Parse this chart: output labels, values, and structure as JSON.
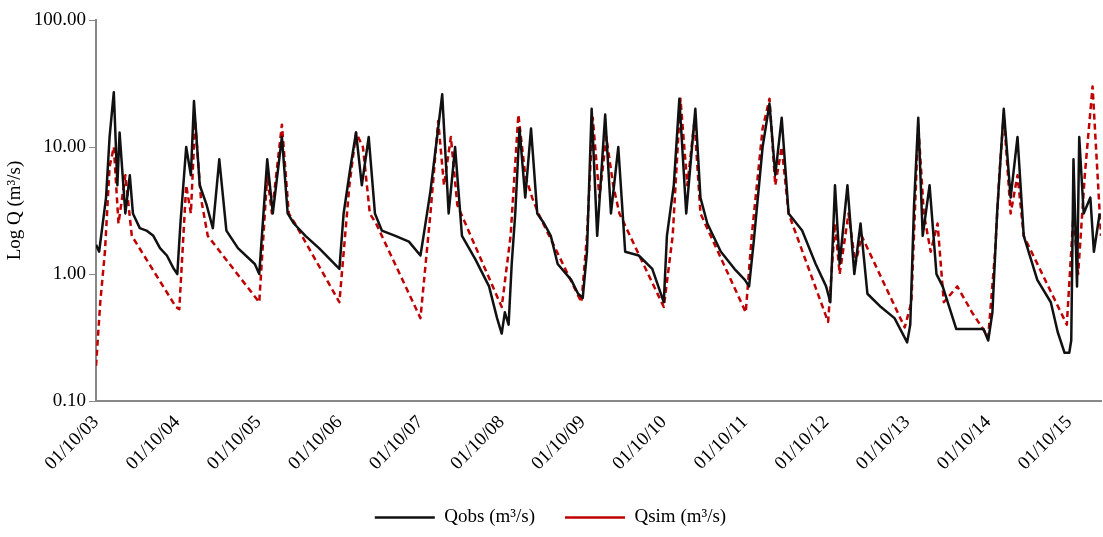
{
  "chart_data": {
    "type": "line",
    "ylabel": "Log Q (m³/s)",
    "log": "y",
    "grid": false,
    "legend": "bottom",
    "marker": "none",
    "xlim": [
      "2003-10-01",
      "2016-02-21"
    ],
    "xticks": [
      {
        "value": "2003-10-01",
        "label": "01/10/03"
      },
      {
        "value": "2004-10-01",
        "label": "01/10/04"
      },
      {
        "value": "2005-10-01",
        "label": "01/10/05"
      },
      {
        "value": "2006-10-01",
        "label": "01/10/06"
      },
      {
        "value": "2007-10-01",
        "label": "01/10/07"
      },
      {
        "value": "2008-10-01",
        "label": "01/10/08"
      },
      {
        "value": "2009-10-01",
        "label": "01/10/09"
      },
      {
        "value": "2010-10-01",
        "label": "01/10/10"
      },
      {
        "value": "2011-10-01",
        "label": "01/10/11"
      },
      {
        "value": "2012-10-01",
        "label": "01/10/12"
      },
      {
        "value": "2013-10-01",
        "label": "01/10/13"
      },
      {
        "value": "2014-10-01",
        "label": "01/10/14"
      },
      {
        "value": "2015-10-01",
        "label": "01/10/15"
      }
    ],
    "ylim": [
      0.1,
      100
    ],
    "yticks": [
      {
        "value": 0.1,
        "label": "0.10"
      },
      {
        "value": 1,
        "label": "1.00"
      },
      {
        "value": 10,
        "label": "10.00"
      },
      {
        "value": 100,
        "label": "100.00"
      }
    ],
    "series": [
      {
        "name": "Qobs (m³/s)",
        "color": "#111111",
        "line_style": "solid",
        "x": [
          "2003-10-01",
          "2003-10-15",
          "2003-11-15",
          "2003-12-01",
          "2003-12-20",
          "2004-01-05",
          "2004-01-15",
          "2004-02-10",
          "2004-03-01",
          "2004-03-15",
          "2004-04-15",
          "2004-05-15",
          "2004-06-15",
          "2004-07-15",
          "2004-08-15",
          "2004-09-15",
          "2004-10-01",
          "2004-10-15",
          "2004-11-10",
          "2004-12-01",
          "2004-12-15",
          "2005-01-10",
          "2005-02-10",
          "2005-03-10",
          "2005-04-08",
          "2005-05-10",
          "2005-07-01",
          "2005-09-15",
          "2005-10-05",
          "2005-11-10",
          "2005-12-05",
          "2006-01-15",
          "2006-02-10",
          "2006-03-10",
          "2006-05-01",
          "2006-07-01",
          "2006-09-10",
          "2006-10-01",
          "2006-10-20",
          "2006-11-20",
          "2006-12-15",
          "2007-01-10",
          "2007-02-10",
          "2007-03-10",
          "2007-04-10",
          "2007-06-10",
          "2007-08-10",
          "2007-10-01",
          "2007-10-15",
          "2007-11-15",
          "2007-12-15",
          "2008-01-07",
          "2008-02-05",
          "2008-03-05",
          "2008-04-05",
          "2008-06-05",
          "2008-08-05",
          "2008-09-10",
          "2008-10-01",
          "2008-10-15",
          "2008-11-01",
          "2008-11-15",
          "2008-12-01",
          "2008-12-20",
          "2009-01-15",
          "2009-02-10",
          "2009-03-10",
          "2009-04-10",
          "2009-05-10",
          "2009-06-10",
          "2009-08-10",
          "2009-09-10",
          "2009-10-01",
          "2009-10-20",
          "2009-11-10",
          "2009-12-05",
          "2010-01-10",
          "2010-02-05",
          "2010-03-10",
          "2010-04-10",
          "2010-06-10",
          "2010-08-10",
          "2010-10-01",
          "2010-10-15",
          "2010-11-15",
          "2010-12-10",
          "2011-01-10",
          "2011-02-20",
          "2011-03-15",
          "2011-04-15",
          "2011-06-15",
          "2011-08-15",
          "2011-10-01",
          "2011-10-20",
          "2011-11-10",
          "2011-12-20",
          "2012-01-20",
          "2012-02-15",
          "2012-03-15",
          "2012-04-15",
          "2012-06-15",
          "2012-08-15",
          "2012-10-01",
          "2012-10-20",
          "2012-11-10",
          "2012-12-01",
          "2013-01-05",
          "2013-02-05",
          "2013-03-05",
          "2013-04-05",
          "2013-06-05",
          "2013-08-05",
          "2013-10-01",
          "2013-10-15",
          "2013-11-01",
          "2013-11-20",
          "2013-12-10",
          "2014-01-10",
          "2014-02-10",
          "2014-03-10",
          "2014-05-10",
          "2014-07-10",
          "2014-09-10",
          "2014-10-01",
          "2014-10-20",
          "2014-11-10",
          "2014-12-10",
          "2015-01-10",
          "2015-02-10",
          "2015-03-10",
          "2015-05-10",
          "2015-07-10",
          "2015-08-10",
          "2015-09-10",
          "2015-10-01",
          "2015-10-10",
          "2015-10-20",
          "2015-11-05",
          "2015-11-15",
          "2015-12-05",
          "2016-01-04",
          "2016-01-20",
          "2016-02-15"
        ],
        "values": [
          1.7,
          1.5,
          4,
          12,
          27,
          5,
          13,
          3,
          6,
          3,
          2.3,
          2.2,
          2,
          1.6,
          1.4,
          1.1,
          1.0,
          2.5,
          10,
          6,
          23,
          5,
          3.5,
          2.3,
          8,
          2.2,
          1.6,
          1.2,
          1.0,
          8,
          3,
          12,
          3,
          2.5,
          2,
          1.6,
          1.2,
          1.1,
          3,
          7,
          13,
          5,
          12,
          3,
          2.2,
          2,
          1.8,
          1.4,
          2,
          4.5,
          12,
          26,
          3,
          10,
          2,
          1.3,
          0.8,
          0.45,
          0.34,
          0.5,
          0.4,
          1.2,
          3,
          14,
          4,
          14,
          3,
          2.5,
          2,
          1.2,
          0.9,
          0.7,
          0.65,
          1.5,
          20,
          2,
          18,
          3,
          10,
          1.5,
          1.4,
          1.1,
          0.6,
          2,
          5,
          24,
          3,
          20,
          4,
          2.5,
          1.5,
          1.1,
          0.9,
          0.8,
          1.8,
          10,
          22,
          6,
          17,
          3,
          2.2,
          1.2,
          0.8,
          0.6,
          5,
          1.2,
          5,
          1,
          2.5,
          0.7,
          0.55,
          0.45,
          0.29,
          0.4,
          3.5,
          17,
          2,
          5,
          1,
          0.8,
          0.37,
          0.37,
          0.37,
          0.3,
          0.5,
          3,
          20,
          4,
          12,
          2,
          0.9,
          0.6,
          0.35,
          0.24,
          0.24,
          0.3,
          8,
          0.8,
          12,
          3,
          4,
          1.5,
          3
        ]
      },
      {
        "name": "Qsim (m³/s)",
        "color": "#c00000",
        "line_style": "dashed",
        "x": [
          "2003-10-01",
          "2003-10-20",
          "2003-11-10",
          "2003-12-01",
          "2003-12-20",
          "2004-01-10",
          "2004-02-10",
          "2004-03-10",
          "2004-09-25",
          "2004-10-10",
          "2004-11-10",
          "2004-12-01",
          "2004-12-20",
          "2005-01-15",
          "2005-02-15",
          "2005-10-05",
          "2005-11-10",
          "2005-12-01",
          "2006-01-15",
          "2006-02-15",
          "2006-03-15",
          "2006-10-01",
          "2006-11-15",
          "2006-12-15",
          "2007-01-15",
          "2007-02-15",
          "2007-03-15",
          "2007-10-01",
          "2007-11-15",
          "2007-12-20",
          "2008-01-15",
          "2008-02-15",
          "2008-03-15",
          "2008-10-01",
          "2008-11-10",
          "2008-12-15",
          "2009-01-15",
          "2009-02-15",
          "2009-03-15",
          "2009-09-25",
          "2009-10-20",
          "2009-11-15",
          "2009-12-15",
          "2010-01-15",
          "2010-02-15",
          "2010-03-15",
          "2010-10-01",
          "2010-11-10",
          "2010-12-15",
          "2011-01-15",
          "2011-02-16",
          "2011-03-15",
          "2011-10-05",
          "2011-11-01",
          "2011-12-20",
          "2012-01-20",
          "2012-02-15",
          "2012-03-15",
          "2012-04-15",
          "2012-10-10",
          "2012-11-10",
          "2012-12-01",
          "2013-01-10",
          "2013-02-10",
          "2013-03-10",
          "2013-09-20",
          "2013-10-20",
          "2013-11-20",
          "2013-12-15",
          "2014-01-15",
          "2014-02-15",
          "2014-03-15",
          "2014-05-15",
          "2014-07-20",
          "2014-10-01",
          "2014-11-01",
          "2014-11-20",
          "2014-12-10",
          "2015-01-10",
          "2015-02-10",
          "2015-03-10",
          "2015-09-20",
          "2015-10-20",
          "2015-11-10",
          "2015-12-10",
          "2016-01-14",
          "2016-02-21"
        ],
        "values": [
          0.19,
          0.6,
          1.5,
          7,
          10,
          2.5,
          6,
          2,
          0.55,
          0.53,
          5,
          3,
          16,
          4,
          2,
          0.6,
          6,
          3,
          15,
          3,
          2.5,
          0.6,
          5,
          13,
          10,
          3,
          2.5,
          0.45,
          3,
          16,
          5,
          12,
          3.5,
          0.55,
          2,
          18,
          6,
          4,
          3,
          0.6,
          2,
          17,
          4,
          12,
          5,
          3,
          0.55,
          2,
          24,
          5,
          16,
          3,
          0.5,
          2,
          14,
          24,
          5,
          10,
          3,
          0.42,
          2.5,
          1,
          3,
          1.2,
          2,
          0.38,
          0.6,
          15,
          3,
          1.5,
          2.5,
          0.6,
          0.8,
          0.5,
          0.32,
          1.5,
          6,
          18,
          3,
          6,
          2,
          0.4,
          3,
          1,
          6,
          30,
          2
        ]
      }
    ]
  }
}
